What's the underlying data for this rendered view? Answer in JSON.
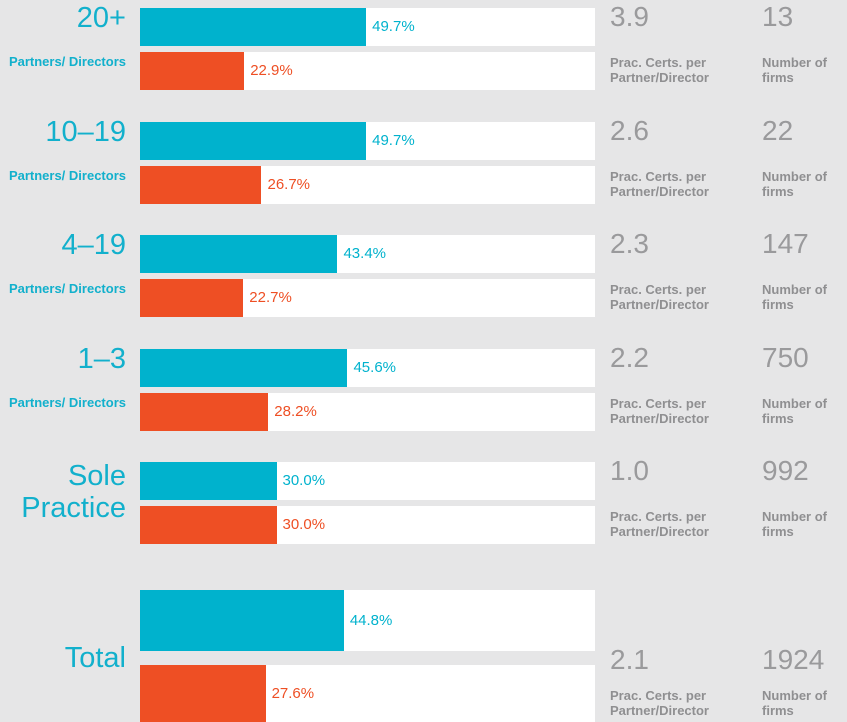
{
  "chart_data": {
    "type": "bar",
    "orientation": "horizontal",
    "categories": [
      "20+",
      "10–19",
      "4–19",
      "1–3",
      "Sole Practice",
      "Total"
    ],
    "category_sublabels": [
      "Partners/ Directors",
      "Partners/ Directors",
      "Partners/ Directors",
      "Partners/ Directors",
      null,
      null
    ],
    "xlim": [
      0,
      100
    ],
    "series": [
      {
        "color": "#00b2cd",
        "values": [
          49.7,
          49.7,
          43.4,
          45.6,
          30.0,
          44.8
        ],
        "value_labels": [
          "49.7%",
          "49.7%",
          "43.4%",
          "45.6%",
          "30.0%",
          "44.8%"
        ]
      },
      {
        "color": "#ee4f24",
        "values": [
          22.9,
          26.7,
          22.7,
          28.2,
          30.0,
          27.6
        ],
        "value_labels": [
          "22.9%",
          "26.7%",
          "22.7%",
          "28.2%",
          "30.0%",
          "27.6%"
        ]
      }
    ],
    "certs": {
      "label": "Prac. Certs. per Partner/Director",
      "values": [
        3.9,
        2.6,
        2.3,
        2.2,
        1.0,
        2.1
      ],
      "value_labels": [
        "3.9",
        "2.6",
        "2.3",
        "2.2",
        "1.0",
        "2.1"
      ]
    },
    "firms": {
      "label": "Number of firms",
      "values": [
        13,
        22,
        147,
        750,
        992,
        1924
      ]
    }
  }
}
